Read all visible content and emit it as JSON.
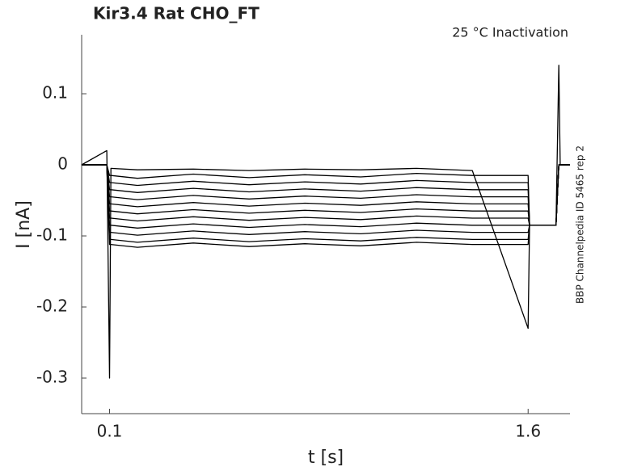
{
  "chart_data": {
    "type": "line",
    "title": "Kir3.4  Rat  CHO_FT",
    "annotation": "25 °C  Inactivation",
    "side_note": "BBP Channelpedia ID 5465 rep 2",
    "x_label": "t [s]",
    "y_label": "I [nA]",
    "xlim": [
      0,
      1.75
    ],
    "ylim": [
      -0.35,
      0.183
    ],
    "xticks": [
      0.1,
      1.6
    ],
    "yticks": [
      0.1,
      0,
      -0.1,
      -0.2,
      -0.3
    ],
    "grid": false,
    "x": [
      0,
      0.09,
      0.1,
      0.105,
      0.2,
      0.4,
      0.6,
      0.8,
      1.0,
      1.2,
      1.4,
      1.6,
      1.605,
      1.7,
      1.71,
      1.715,
      1.75
    ],
    "series": [
      {
        "color": "#000000",
        "values": [
          0,
          0.02,
          -0.3,
          -0.005,
          -0.007,
          -0.006,
          -0.008,
          -0.006,
          -0.007,
          -0.005,
          -0.008,
          -0.23,
          -0.085,
          -0.085,
          0.14,
          0,
          0
        ]
      },
      {
        "color": "#000000",
        "values": [
          0,
          0,
          -0.015,
          -0.015,
          -0.019,
          -0.013,
          -0.018,
          -0.014,
          -0.017,
          -0.012,
          -0.015,
          -0.015,
          -0.085,
          -0.085,
          0,
          0,
          0
        ]
      },
      {
        "color": "#000000",
        "values": [
          0,
          0,
          -0.025,
          -0.025,
          -0.029,
          -0.023,
          -0.028,
          -0.024,
          -0.027,
          -0.022,
          -0.025,
          -0.025,
          -0.085,
          -0.085,
          0,
          0,
          0
        ]
      },
      {
        "color": "#000000",
        "values": [
          0,
          0,
          -0.035,
          -0.035,
          -0.039,
          -0.033,
          -0.038,
          -0.034,
          -0.037,
          -0.032,
          -0.035,
          -0.035,
          -0.085,
          -0.085,
          0,
          0,
          0
        ]
      },
      {
        "color": "#000000",
        "values": [
          0,
          0,
          -0.045,
          -0.045,
          -0.049,
          -0.043,
          -0.048,
          -0.044,
          -0.047,
          -0.042,
          -0.045,
          -0.045,
          -0.085,
          -0.085,
          0,
          0,
          0
        ]
      },
      {
        "color": "#000000",
        "values": [
          0,
          0,
          -0.055,
          -0.055,
          -0.059,
          -0.053,
          -0.058,
          -0.054,
          -0.057,
          -0.052,
          -0.055,
          -0.055,
          -0.085,
          -0.085,
          0,
          0,
          0
        ]
      },
      {
        "color": "#000000",
        "values": [
          0,
          0,
          -0.065,
          -0.065,
          -0.069,
          -0.063,
          -0.068,
          -0.064,
          -0.067,
          -0.062,
          -0.065,
          -0.065,
          -0.085,
          -0.085,
          0,
          0,
          0
        ]
      },
      {
        "color": "#000000",
        "values": [
          0,
          0,
          -0.075,
          -0.075,
          -0.079,
          -0.073,
          -0.078,
          -0.074,
          -0.077,
          -0.072,
          -0.075,
          -0.075,
          -0.085,
          -0.085,
          0,
          0,
          0
        ]
      },
      {
        "color": "#000000",
        "values": [
          0,
          0,
          -0.085,
          -0.085,
          -0.089,
          -0.083,
          -0.088,
          -0.084,
          -0.087,
          -0.082,
          -0.085,
          -0.085,
          -0.085,
          -0.085,
          0,
          0,
          0
        ]
      },
      {
        "color": "#000000",
        "values": [
          0,
          0,
          -0.095,
          -0.095,
          -0.099,
          -0.093,
          -0.098,
          -0.094,
          -0.097,
          -0.092,
          -0.095,
          -0.095,
          -0.085,
          -0.085,
          0,
          0,
          0
        ]
      },
      {
        "color": "#000000",
        "values": [
          0,
          0,
          -0.105,
          -0.105,
          -0.109,
          -0.103,
          -0.108,
          -0.104,
          -0.107,
          -0.102,
          -0.105,
          -0.105,
          -0.085,
          -0.085,
          0,
          0,
          0
        ]
      },
      {
        "color": "#000000",
        "values": [
          0,
          0,
          -0.112,
          -0.112,
          -0.116,
          -0.11,
          -0.115,
          -0.111,
          -0.114,
          -0.109,
          -0.112,
          -0.112,
          -0.085,
          -0.085,
          0,
          0,
          0
        ]
      }
    ]
  }
}
